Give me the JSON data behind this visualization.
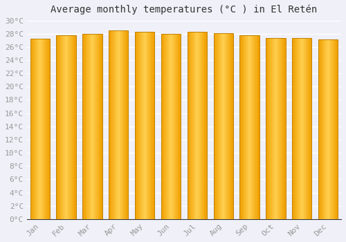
{
  "title": "Average monthly temperatures (°C ) in El Retén",
  "months": [
    "Jan",
    "Feb",
    "Mar",
    "Apr",
    "May",
    "Jun",
    "Jul",
    "Aug",
    "Sep",
    "Oct",
    "Nov",
    "Dec"
  ],
  "values": [
    27.2,
    27.8,
    28.0,
    28.5,
    28.3,
    28.0,
    28.3,
    28.1,
    27.8,
    27.3,
    27.3,
    27.1
  ],
  "bar_color_center": "#FFD050",
  "bar_color_edge": "#F0A000",
  "bar_color_border": "#C08000",
  "ylim": [
    0,
    30
  ],
  "ytick_step": 2,
  "background_color": "#f0f0f8",
  "grid_color": "#ffffff",
  "title_fontsize": 10,
  "tick_fontsize": 8,
  "tick_color": "#999999",
  "title_color": "#333333"
}
